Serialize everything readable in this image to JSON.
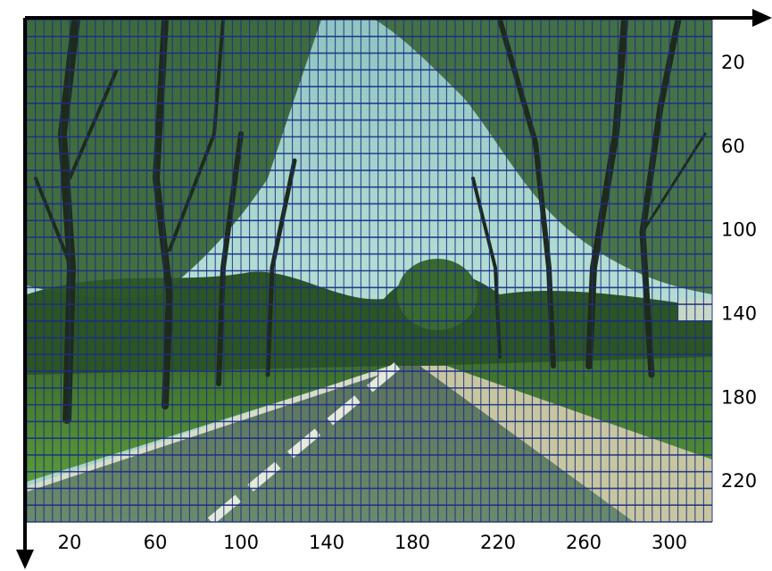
{
  "figure": {
    "description_type": "photo-with-grid",
    "x_ticks": [
      "20",
      "60",
      "100",
      "140",
      "180",
      "220",
      "260",
      "300"
    ],
    "y_ticks": [
      "20",
      "60",
      "100",
      "140",
      "180",
      "220"
    ],
    "grid_step": 4,
    "x_max": 320,
    "y_max": 240,
    "colors": {
      "grid": "#1a2f86",
      "axis": "#000000",
      "sky": "#9fd0c8",
      "foliage": "#2f5a24",
      "road": "#5f7a62",
      "grass": "#4f8a34"
    }
  }
}
